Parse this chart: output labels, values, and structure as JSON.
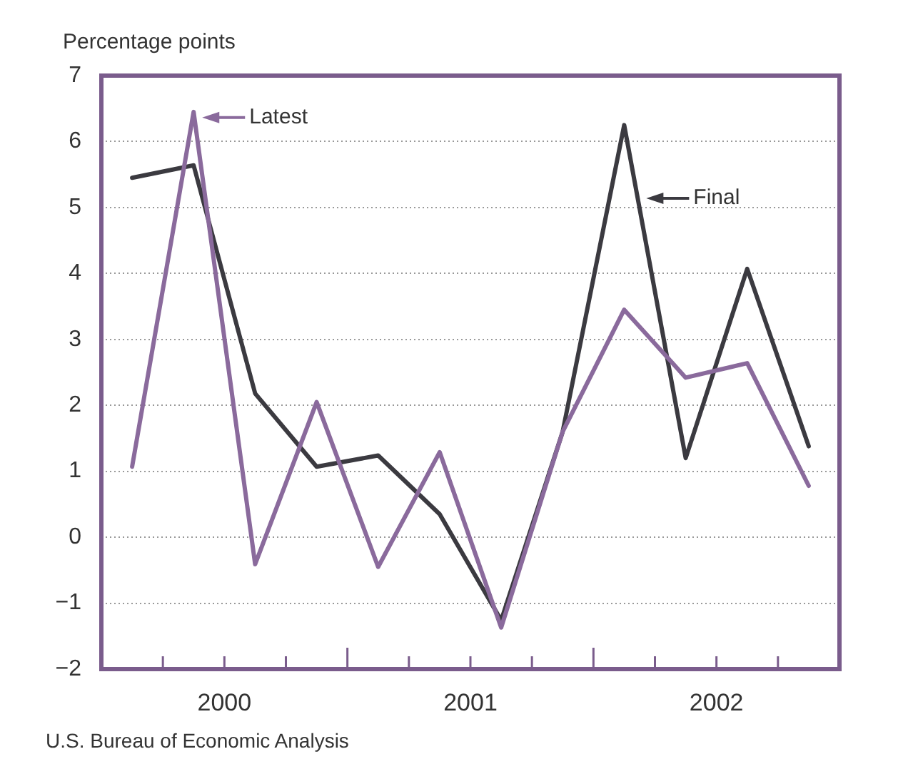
{
  "chart_data": {
    "type": "line",
    "ylabel": "Percentage points",
    "x": [
      2000.125,
      2000.375,
      2000.625,
      2000.875,
      2001.125,
      2001.375,
      2001.625,
      2001.875,
      2002.125,
      2002.375,
      2002.625,
      2002.875
    ],
    "series": [
      {
        "name": "Latest",
        "color": "#8a6a9c",
        "values": [
          1.07,
          6.45,
          -0.41,
          2.05,
          -0.45,
          1.29,
          -1.37,
          1.6,
          3.45,
          2.42,
          2.64,
          0.78
        ]
      },
      {
        "name": "Final",
        "color": "#3b3a40",
        "values": [
          5.45,
          5.64,
          2.18,
          1.07,
          1.24,
          0.35,
          -1.26,
          1.6,
          6.25,
          1.2,
          4.07,
          1.38
        ]
      }
    ],
    "xlim": [
      2000,
      2003
    ],
    "xticks": [
      {
        "value": 2000.25,
        "label": null
      },
      {
        "value": 2000.5,
        "label": "2000"
      },
      {
        "value": 2000.75,
        "label": null
      },
      {
        "value": 2001,
        "label": null
      },
      {
        "value": 2001.25,
        "label": null
      },
      {
        "value": 2001.5,
        "label": "2001"
      },
      {
        "value": 2001.75,
        "label": null
      },
      {
        "value": 2002,
        "label": null
      },
      {
        "value": 2002.25,
        "label": null
      },
      {
        "value": 2002.5,
        "label": "2002"
      },
      {
        "value": 2002.75,
        "label": null
      }
    ],
    "ylim": [
      -2,
      7
    ],
    "yticks": [
      {
        "value": -2,
        "label": "−2"
      },
      {
        "value": -1,
        "label": "−1"
      },
      0,
      1,
      2,
      3,
      4,
      5,
      6,
      7
    ],
    "grid": "y",
    "legend": "top",
    "marker": "none",
    "line_style": "solid",
    "annotations": [
      "U.S. Bureau of Economic Analysis"
    ]
  }
}
